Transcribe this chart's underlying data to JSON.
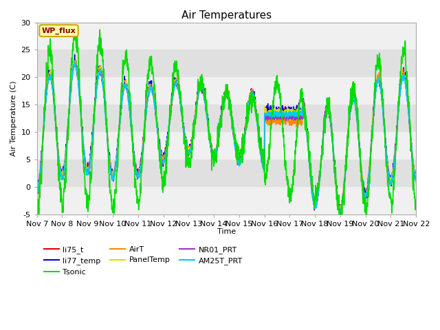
{
  "title": "Air Temperatures",
  "xlabel": "Time",
  "ylabel": "Air Temperature (C)",
  "ylim": [
    -5,
    30
  ],
  "xlim": [
    0,
    15
  ],
  "x_tick_labels": [
    "Nov 7",
    "Nov 8",
    "Nov 9",
    "Nov 10",
    "Nov 11",
    "Nov 12",
    "Nov 13",
    "Nov 14",
    "Nov 15",
    "Nov 16",
    "Nov 17",
    "Nov 18",
    "Nov 19",
    "Nov 20",
    "Nov 21",
    "Nov 22"
  ],
  "series": {
    "li75_t": {
      "color": "#dd0000",
      "lw": 1.0
    },
    "li77_temp": {
      "color": "#0000dd",
      "lw": 1.0
    },
    "Tsonic": {
      "color": "#00dd00",
      "lw": 1.2
    },
    "AirT": {
      "color": "#ff8800",
      "lw": 1.0
    },
    "PanelTemp": {
      "color": "#dddd00",
      "lw": 1.0
    },
    "NR01_PRT": {
      "color": "#9933cc",
      "lw": 1.0
    },
    "AM25T_PRT": {
      "color": "#00ccee",
      "lw": 1.2
    }
  },
  "annotation_text": "WP_flux",
  "background_color": "#ffffff",
  "plot_bg_color_light": "#f0f0f0",
  "plot_bg_color_dark": "#e0e0e0",
  "title_fontsize": 11,
  "axis_fontsize": 8,
  "tick_fontsize": 8
}
